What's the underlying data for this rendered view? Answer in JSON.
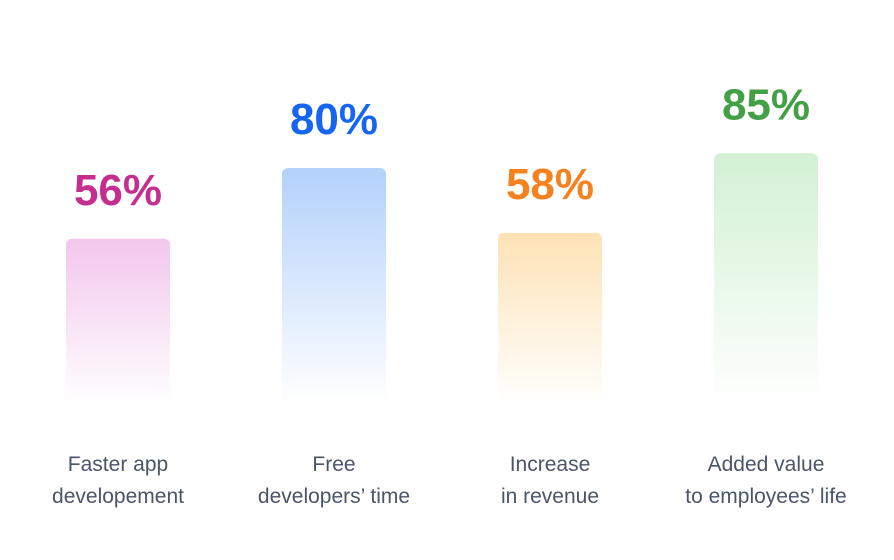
{
  "chart_data": {
    "type": "bar",
    "categories": [
      [
        "Faster app",
        "developement"
      ],
      [
        "Free",
        "developers’ time"
      ],
      [
        "Increase",
        "in revenue"
      ],
      [
        "Added value",
        "to employees’ life"
      ]
    ],
    "values": [
      56,
      80,
      58,
      85
    ],
    "value_labels": [
      "56%",
      "80%",
      "58%",
      "85%"
    ],
    "colors": [
      "#c42f8f",
      "#1565f0",
      "#f5821f",
      "#43a047"
    ],
    "bar_colors": [
      "#f2c6ec",
      "#b3d1fb",
      "#fde2b4",
      "#d2f1d3"
    ],
    "ylim": [
      0,
      100
    ],
    "grid": false,
    "legend": "none",
    "title": "",
    "xlabel": "",
    "ylabel": ""
  }
}
